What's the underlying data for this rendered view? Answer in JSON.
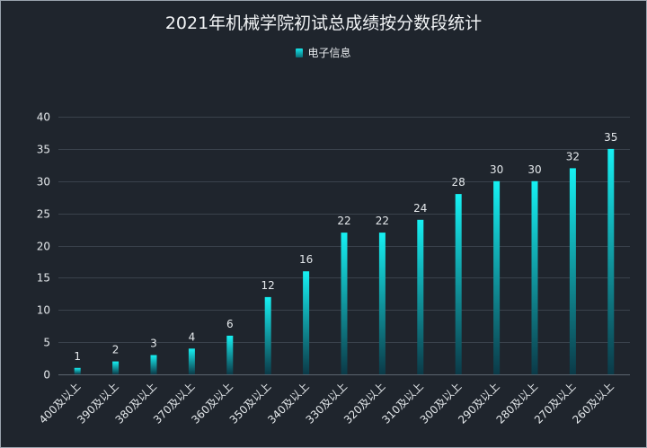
{
  "title": "2021年机械学院初试总成绩按分数段统计",
  "legend": {
    "label": "电子信息"
  },
  "colors": {
    "bar_top": "#16f0f2",
    "bar_bottom": "#0b3a48",
    "background": "#1f252d"
  },
  "chart_data": {
    "type": "bar",
    "title": "2021年机械学院初试总成绩按分数段统计",
    "categories": [
      "400及以上",
      "390及以上",
      "380及以上",
      "370及以上",
      "360及以上",
      "350及以上",
      "340及以上",
      "330及以上",
      "320及以上",
      "310及以上",
      "300及以上",
      "290及以上",
      "280及以上",
      "270及以上",
      "260及以上"
    ],
    "series": [
      {
        "name": "电子信息",
        "values": [
          1,
          2,
          3,
          4,
          6,
          12,
          16,
          22,
          22,
          24,
          28,
          30,
          30,
          32,
          35
        ]
      }
    ],
    "ylim": [
      0,
      40
    ],
    "yticks": [
      0,
      5,
      10,
      15,
      20,
      25,
      30,
      35,
      40
    ],
    "grid": true,
    "legend_position": "top-center",
    "data_labels": true
  }
}
